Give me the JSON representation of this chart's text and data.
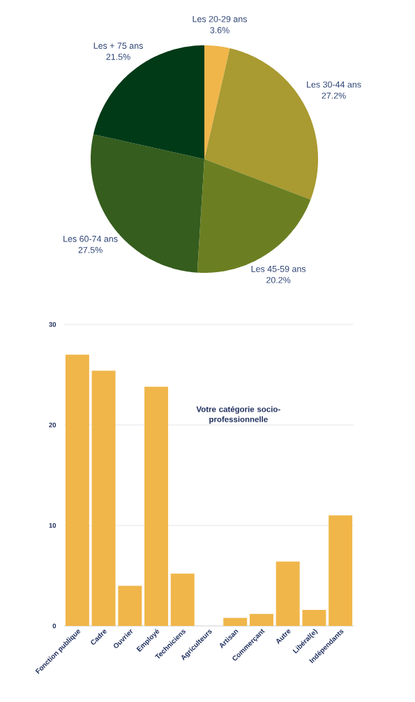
{
  "chart_data": [
    {
      "type": "pie",
      "categories": [
        "Les 20-29 ans",
        "Les 30-44 ans",
        "Les 45-59 ans",
        "Les 60-74 ans",
        "Les + 75 ans"
      ],
      "values": [
        3.6,
        27.2,
        20.2,
        27.5,
        21.5
      ],
      "colors": [
        "#f0b64a",
        "#a99a31",
        "#6b7f22",
        "#355d1d",
        "#013a17"
      ],
      "value_labels": [
        "3.6%",
        "27.2%",
        "20.2%",
        "27.5%",
        "21.5%"
      ]
    },
    {
      "type": "bar",
      "title": "Votre catégorie socio-professionnelle",
      "categories": [
        "Fonction publique",
        "Cadre",
        "Ouvrier",
        "Employé",
        "Techniciens",
        "Agriculteurs",
        "Artisan",
        "Commerçant",
        "Autre",
        "Libéral(e)",
        "Indépendants"
      ],
      "values": [
        27.0,
        25.4,
        4.0,
        23.8,
        5.2,
        0,
        0.8,
        1.2,
        6.4,
        1.6,
        11.0
      ],
      "color": "#f0b64a",
      "ylim": [
        0,
        30
      ],
      "yticks": [
        0,
        10,
        20,
        30
      ],
      "grid": "y"
    }
  ]
}
